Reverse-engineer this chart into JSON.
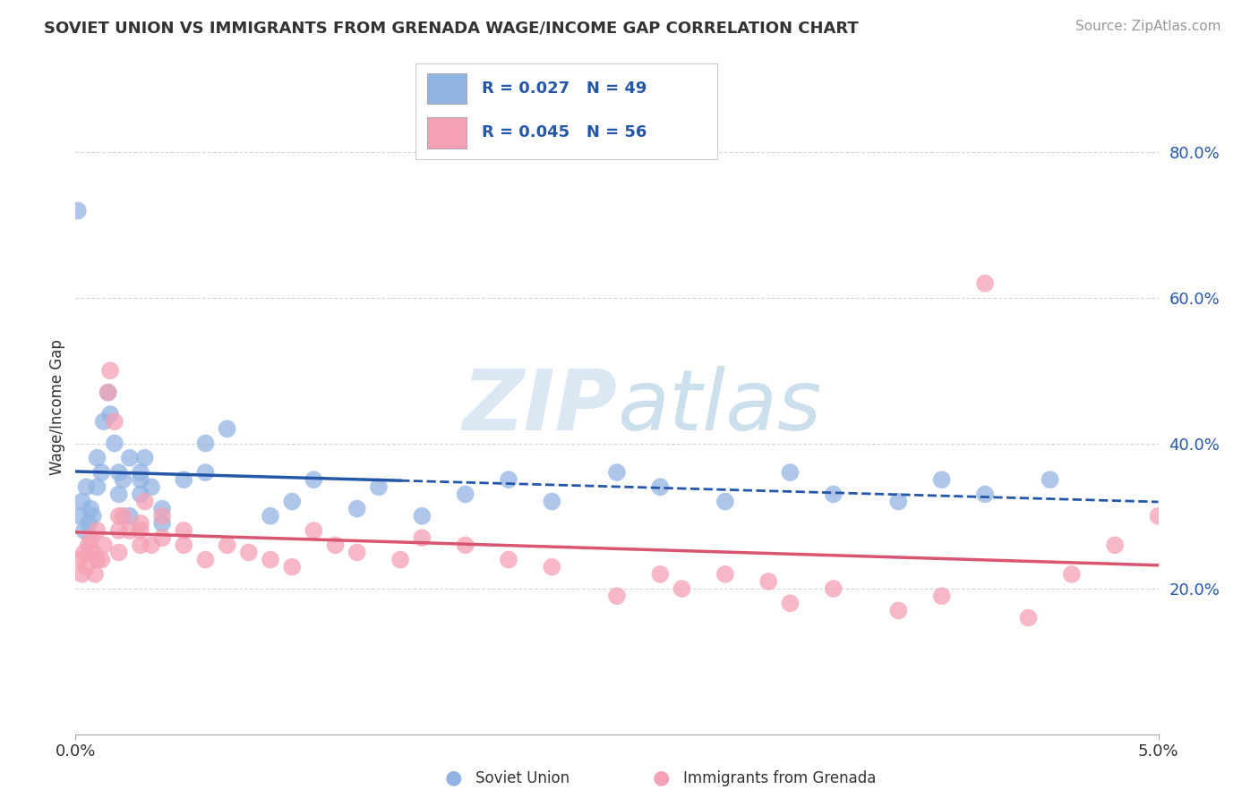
{
  "title": "SOVIET UNION VS IMMIGRANTS FROM GRENADA WAGE/INCOME GAP CORRELATION CHART",
  "source": "Source: ZipAtlas.com",
  "ylabel": "Wage/Income Gap",
  "y_ticks": [
    0.2,
    0.4,
    0.6,
    0.8
  ],
  "y_tick_labels": [
    "20.0%",
    "40.0%",
    "60.0%",
    "80.0%"
  ],
  "legend_labels": [
    "Soviet Union",
    "Immigrants from Grenada"
  ],
  "legend_r": [
    0.027,
    0.045
  ],
  "legend_n": [
    49,
    56
  ],
  "soviet_color": "#92b4e3",
  "grenada_color": "#f4a0b5",
  "soviet_line_color": "#2457a8",
  "grenada_line_color": "#d9546e",
  "background_color": "#ffffff",
  "soviet_x": [
    0.0002,
    0.0003,
    0.0004,
    0.0005,
    0.0006,
    0.0007,
    0.0008,
    0.001,
    0.001,
    0.0012,
    0.0013,
    0.0015,
    0.0016,
    0.0018,
    0.002,
    0.002,
    0.0022,
    0.0025,
    0.0025,
    0.003,
    0.003,
    0.003,
    0.0032,
    0.0035,
    0.004,
    0.004,
    0.005,
    0.006,
    0.006,
    0.007,
    0.009,
    0.01,
    0.011,
    0.013,
    0.014,
    0.016,
    0.018,
    0.02,
    0.022,
    0.025,
    0.027,
    0.03,
    0.033,
    0.035,
    0.038,
    0.04,
    0.042,
    0.045,
    0.0001
  ],
  "soviet_y": [
    0.3,
    0.32,
    0.28,
    0.34,
    0.29,
    0.31,
    0.3,
    0.34,
    0.38,
    0.36,
    0.43,
    0.47,
    0.44,
    0.4,
    0.36,
    0.33,
    0.35,
    0.38,
    0.3,
    0.33,
    0.35,
    0.36,
    0.38,
    0.34,
    0.31,
    0.29,
    0.35,
    0.36,
    0.4,
    0.42,
    0.3,
    0.32,
    0.35,
    0.31,
    0.34,
    0.3,
    0.33,
    0.35,
    0.32,
    0.36,
    0.34,
    0.32,
    0.36,
    0.33,
    0.32,
    0.35,
    0.33,
    0.35,
    0.72
  ],
  "grenada_x": [
    0.0002,
    0.0003,
    0.0004,
    0.0005,
    0.0006,
    0.0007,
    0.0008,
    0.0009,
    0.001,
    0.001,
    0.0012,
    0.0013,
    0.0015,
    0.0016,
    0.0018,
    0.002,
    0.002,
    0.002,
    0.0022,
    0.0025,
    0.003,
    0.003,
    0.003,
    0.0032,
    0.0035,
    0.004,
    0.004,
    0.005,
    0.005,
    0.006,
    0.007,
    0.008,
    0.009,
    0.01,
    0.011,
    0.012,
    0.013,
    0.015,
    0.016,
    0.018,
    0.02,
    0.022,
    0.025,
    0.027,
    0.028,
    0.03,
    0.032,
    0.033,
    0.035,
    0.038,
    0.04,
    0.042,
    0.044,
    0.046,
    0.048,
    0.05
  ],
  "grenada_y": [
    0.24,
    0.22,
    0.25,
    0.23,
    0.26,
    0.27,
    0.25,
    0.22,
    0.24,
    0.28,
    0.24,
    0.26,
    0.47,
    0.5,
    0.43,
    0.3,
    0.28,
    0.25,
    0.3,
    0.28,
    0.26,
    0.29,
    0.28,
    0.32,
    0.26,
    0.27,
    0.3,
    0.26,
    0.28,
    0.24,
    0.26,
    0.25,
    0.24,
    0.23,
    0.28,
    0.26,
    0.25,
    0.24,
    0.27,
    0.26,
    0.24,
    0.23,
    0.19,
    0.22,
    0.2,
    0.22,
    0.21,
    0.18,
    0.2,
    0.17,
    0.19,
    0.62,
    0.16,
    0.22,
    0.26,
    0.3
  ]
}
